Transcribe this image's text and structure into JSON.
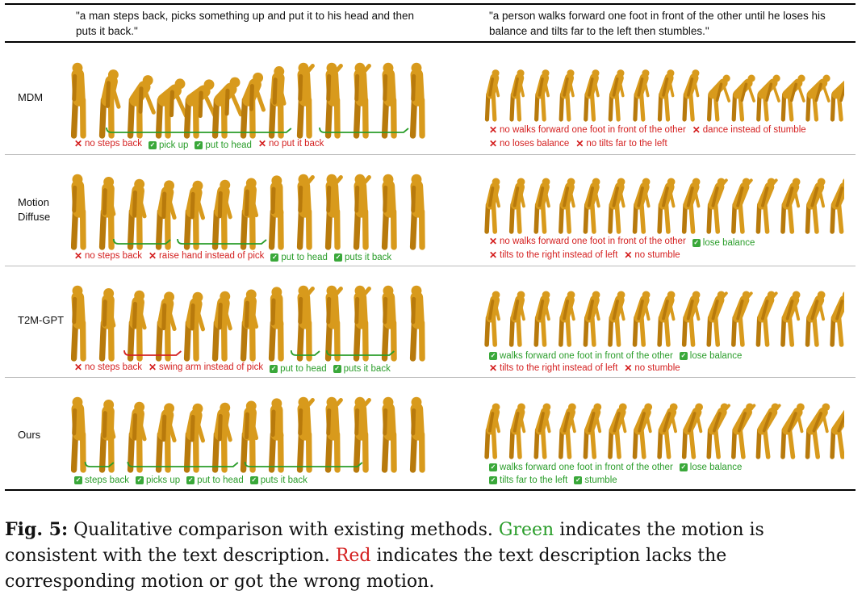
{
  "prompts": {
    "left": "\"a man steps back, picks something up and put it to his head and then puts it back.\"",
    "right": "\"a person walks forward one foot in front of the other until he loses his balance and tilts far to the left then stumbles.\""
  },
  "rows": [
    {
      "method": "MDM",
      "left_labels": [
        {
          "ok": false,
          "text": "no steps back"
        },
        {
          "ok": true,
          "text": "pick up"
        },
        {
          "ok": true,
          "text": "put to head"
        },
        {
          "ok": false,
          "text": "no put it back"
        }
      ],
      "right_labels_1": [
        {
          "ok": false,
          "text": "no walks forward one foot in front of the other"
        },
        {
          "ok": false,
          "text": "dance instead of stumble"
        }
      ],
      "right_labels_2": [
        {
          "ok": false,
          "text": "no loses balance"
        },
        {
          "ok": false,
          "text": "no tilts far to the left"
        }
      ]
    },
    {
      "method": "Motion Diffuse",
      "method_line1": "Motion",
      "method_line2": "Diffuse",
      "left_labels": [
        {
          "ok": false,
          "text": "no steps back"
        },
        {
          "ok": false,
          "text": "raise hand instead of pick"
        },
        {
          "ok": true,
          "text": "put to head"
        },
        {
          "ok": true,
          "text": "puts it back"
        }
      ],
      "right_labels_1": [
        {
          "ok": false,
          "text": "no walks forward one foot in front of the other"
        },
        {
          "ok": true,
          "text": "lose balance"
        }
      ],
      "right_labels_2": [
        {
          "ok": false,
          "text": "tilts to the right instead of left"
        },
        {
          "ok": false,
          "text": "no stumble"
        }
      ]
    },
    {
      "method": "T2M-GPT",
      "left_labels": [
        {
          "ok": false,
          "text": "no steps back"
        },
        {
          "ok": false,
          "text": "swing arm instead of pick"
        },
        {
          "ok": true,
          "text": "put to head"
        },
        {
          "ok": true,
          "text": "puts it back"
        }
      ],
      "right_labels_1": [
        {
          "ok": true,
          "text": "walks forward one foot in front of the other"
        },
        {
          "ok": true,
          "text": "lose balance"
        }
      ],
      "right_labels_2": [
        {
          "ok": false,
          "text": "tilts to the right instead of left"
        },
        {
          "ok": false,
          "text": "no stumble"
        }
      ]
    },
    {
      "method": "Ours",
      "left_labels": [
        {
          "ok": true,
          "text": "steps back"
        },
        {
          "ok": true,
          "text": "picks up"
        },
        {
          "ok": true,
          "text": "put to head"
        },
        {
          "ok": true,
          "text": "puts it back"
        }
      ],
      "right_labels_1": [
        {
          "ok": true,
          "text": "walks forward one foot in front of the other"
        },
        {
          "ok": true,
          "text": "lose balance"
        }
      ],
      "right_labels_2": [
        {
          "ok": true,
          "text": "tilts far to the left"
        },
        {
          "ok": true,
          "text": "stumble"
        }
      ]
    }
  ],
  "caption": {
    "fignum": "Fig. 5:",
    "part1": " Qualitative comparison with existing methods. ",
    "green_word": "Green",
    "part2": " indicates the motion is consistent with the text description. ",
    "red_word": "Red",
    "part3": " indicates the text description lacks the corresponding motion or got the wrong motion."
  },
  "colors": {
    "figure": "#d89a1c",
    "figure_shade": "#b87a0c",
    "good": "#2a9d2a",
    "bad": "#d42020"
  }
}
